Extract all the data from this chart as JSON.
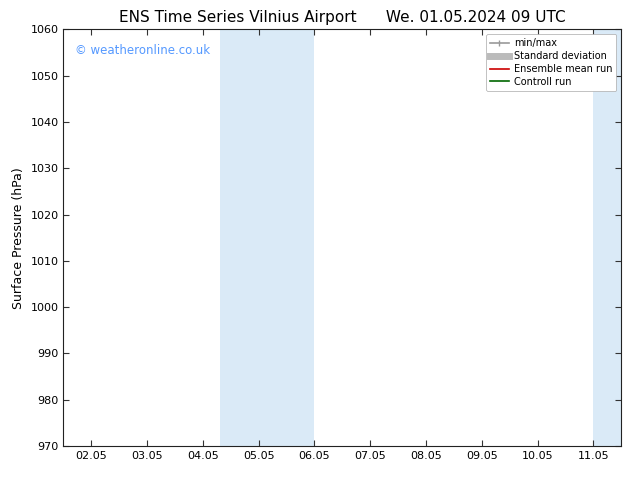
{
  "title_left": "ENS Time Series Vilnius Airport",
  "title_right": "We. 01.05.2024 09 UTC",
  "ylabel": "Surface Pressure (hPa)",
  "ylim": [
    970,
    1060
  ],
  "yticks": [
    970,
    980,
    990,
    1000,
    1010,
    1020,
    1030,
    1040,
    1050,
    1060
  ],
  "xtick_labels": [
    "02.05",
    "03.05",
    "04.05",
    "05.05",
    "06.05",
    "07.05",
    "08.05",
    "09.05",
    "10.05",
    "11.05"
  ],
  "xtick_positions": [
    0,
    1,
    2,
    3,
    4,
    5,
    6,
    7,
    8,
    9
  ],
  "xlim": [
    -0.5,
    9.5
  ],
  "shaded_regions": [
    {
      "x_start": 2.3,
      "x_end": 3.0,
      "color": "#daeaf7"
    },
    {
      "x_start": 3.0,
      "x_end": 4.0,
      "color": "#daeaf7"
    },
    {
      "x_start": 9.0,
      "x_end": 9.5,
      "color": "#daeaf7"
    }
  ],
  "watermark_text": "© weatheronline.co.uk",
  "watermark_color": "#5599ff",
  "legend_entries": [
    {
      "label": "min/max",
      "color": "#999999",
      "lw": 1.2
    },
    {
      "label": "Standard deviation",
      "color": "#bbbbbb",
      "lw": 5
    },
    {
      "label": "Ensemble mean run",
      "color": "#cc0000",
      "lw": 1.2
    },
    {
      "label": "Controll run",
      "color": "#006600",
      "lw": 1.2
    }
  ],
  "bg_color": "#ffffff",
  "title_fontsize": 11,
  "tick_label_fontsize": 8,
  "ylabel_fontsize": 9
}
